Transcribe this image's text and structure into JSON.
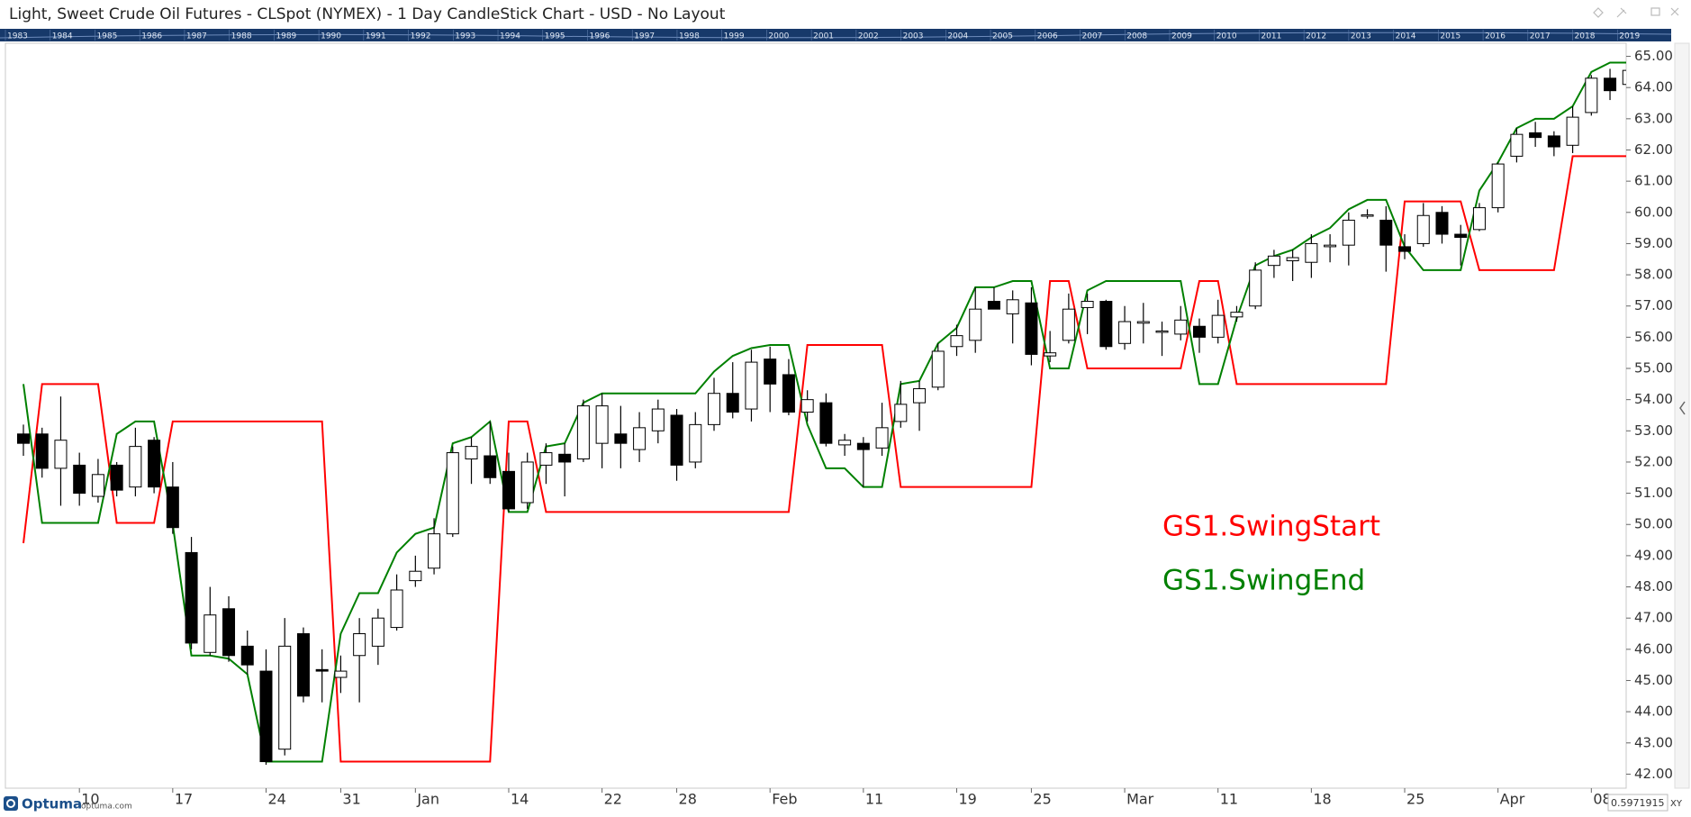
{
  "chart_data": {
    "type": "candlestick",
    "title": "Light, Sweet Crude Oil Futures - CLSpot (NYMEX) - 1 Day CandleStick Chart - USD - No Layout",
    "categories": [
      null,
      null,
      null,
      "10",
      null,
      null,
      null,
      null,
      "17",
      null,
      null,
      null,
      null,
      "24",
      null,
      null,
      null,
      "31",
      null,
      null,
      null,
      "Jan",
      null,
      null,
      null,
      null,
      "14",
      null,
      null,
      null,
      null,
      "22",
      null,
      null,
      null,
      "28",
      null,
      null,
      null,
      null,
      "Feb",
      null,
      null,
      null,
      null,
      "11",
      null,
      null,
      null,
      null,
      "19",
      null,
      null,
      null,
      "25",
      null,
      null,
      null,
      null,
      "Mar",
      null,
      null,
      null,
      null,
      "11",
      null,
      null,
      null,
      null,
      "18",
      null,
      null,
      null,
      null,
      "25",
      null,
      null,
      null,
      null,
      "Apr",
      null,
      null,
      null,
      null,
      "08",
      null,
      null
    ],
    "open": [
      52.9,
      52.9,
      51.8,
      51.9,
      50.9,
      51.9,
      51.2,
      52.7,
      51.2,
      49.1,
      45.9,
      47.3,
      46.1,
      45.3,
      42.8,
      46.5,
      45.35,
      45.1,
      45.8,
      46.1,
      46.7,
      48.2,
      48.6,
      49.7,
      52.1,
      52.2,
      51.7,
      50.7,
      51.9,
      52.25,
      52.1,
      52.6,
      52.9,
      52.4,
      53.0,
      53.5,
      52.0,
      53.2,
      54.2,
      53.7,
      55.3,
      54.8,
      53.6,
      53.9,
      52.55,
      52.6,
      52.45,
      53.3,
      53.9,
      54.4,
      55.7,
      55.9,
      57.15,
      56.75,
      57.1,
      55.4,
      55.9,
      56.95,
      57.15,
      55.8,
      56.45,
      56.2,
      56.1,
      56.35,
      56.0,
      56.65,
      57.0,
      58.3,
      58.45,
      58.4,
      58.9,
      58.95,
      59.88,
      59.75,
      58.9,
      59.0,
      60.0,
      59.3,
      59.45,
      60.15,
      61.8,
      62.55,
      62.45,
      62.15,
      63.2,
      64.3,
      64.1
    ],
    "high": [
      53.2,
      53.1,
      54.1,
      52.3,
      52.1,
      52.0,
      53.1,
      52.8,
      52.0,
      49.6,
      48.0,
      47.7,
      46.6,
      46.0,
      47.0,
      46.7,
      46.0,
      45.8,
      47.0,
      47.3,
      48.4,
      49.0,
      50.2,
      52.5,
      52.8,
      53.3,
      52.3,
      52.3,
      52.6,
      52.6,
      54.0,
      54.2,
      53.8,
      53.6,
      54.0,
      53.7,
      53.6,
      54.7,
      55.2,
      55.6,
      55.7,
      55.3,
      54.3,
      54.2,
      52.9,
      52.8,
      53.9,
      54.6,
      54.6,
      55.8,
      56.4,
      57.6,
      57.6,
      57.5,
      57.6,
      56.2,
      57.4,
      57.4,
      57.2,
      57.0,
      57.1,
      56.5,
      57.0,
      56.6,
      57.2,
      57.0,
      58.4,
      58.8,
      58.8,
      59.3,
      59.3,
      60.0,
      60.1,
      60.2,
      59.3,
      60.3,
      60.2,
      59.6,
      60.3,
      61.6,
      62.7,
      62.9,
      62.6,
      63.4,
      64.4,
      64.6,
      64.8
    ],
    "low": [
      52.2,
      51.5,
      50.6,
      50.6,
      50.7,
      50.9,
      50.9,
      51.0,
      49.7,
      46.0,
      45.8,
      45.6,
      45.2,
      42.3,
      42.6,
      44.3,
      44.3,
      44.6,
      44.3,
      45.5,
      46.6,
      48.0,
      48.4,
      49.6,
      51.3,
      51.3,
      50.4,
      50.5,
      51.3,
      50.9,
      52.0,
      51.8,
      51.8,
      52.0,
      52.6,
      51.4,
      51.8,
      53.0,
      53.4,
      53.3,
      53.6,
      53.5,
      53.3,
      52.5,
      52.2,
      51.2,
      52.2,
      53.1,
      53.0,
      54.3,
      55.4,
      55.5,
      56.9,
      55.8,
      55.1,
      55.2,
      55.8,
      56.1,
      55.6,
      55.6,
      55.8,
      55.4,
      55.9,
      55.5,
      55.8,
      56.5,
      56.9,
      57.9,
      57.8,
      57.9,
      58.4,
      58.3,
      59.8,
      58.1,
      58.5,
      58.9,
      59.0,
      58.3,
      59.4,
      60.0,
      61.6,
      62.1,
      61.8,
      61.9,
      63.1,
      63.6,
      64.0
    ],
    "close": [
      52.6,
      51.8,
      52.7,
      51.0,
      51.6,
      51.1,
      52.5,
      51.2,
      49.9,
      46.2,
      47.1,
      45.8,
      45.5,
      42.4,
      46.1,
      44.5,
      45.3,
      45.3,
      46.5,
      47.0,
      47.9,
      48.5,
      49.7,
      52.3,
      52.5,
      51.5,
      50.5,
      52.0,
      52.3,
      52.0,
      53.8,
      53.8,
      52.6,
      53.1,
      53.7,
      51.9,
      53.2,
      54.2,
      53.6,
      55.2,
      54.5,
      53.6,
      54.0,
      52.6,
      52.7,
      52.4,
      53.1,
      53.85,
      54.35,
      55.55,
      56.05,
      56.9,
      56.9,
      57.2,
      55.45,
      55.5,
      56.9,
      57.15,
      55.7,
      56.5,
      56.5,
      56.2,
      56.55,
      56.0,
      56.7,
      56.8,
      58.15,
      58.6,
      58.55,
      59.0,
      58.95,
      59.75,
      59.92,
      58.95,
      58.75,
      59.9,
      59.3,
      59.2,
      60.15,
      61.55,
      62.5,
      62.4,
      62.1,
      63.05,
      64.3,
      63.9,
      64.55
    ],
    "up_color": "#ffffff",
    "down_color": "#000000",
    "series": [
      {
        "name": "GS1.SwingStart",
        "color": "#ff0000",
        "values": [
          49.4,
          54.5,
          54.5,
          54.5,
          54.5,
          50.05,
          50.05,
          50.05,
          53.3,
          53.3,
          53.3,
          53.3,
          53.3,
          53.3,
          53.3,
          53.3,
          53.3,
          42.4,
          42.4,
          42.4,
          42.4,
          42.4,
          42.4,
          42.4,
          42.4,
          42.4,
          53.3,
          53.3,
          50.4,
          50.4,
          50.4,
          50.4,
          50.4,
          50.4,
          50.4,
          50.4,
          50.4,
          50.4,
          50.4,
          50.4,
          50.4,
          50.4,
          55.75,
          55.75,
          55.75,
          55.75,
          55.75,
          51.2,
          51.2,
          51.2,
          51.2,
          51.2,
          51.2,
          51.2,
          51.2,
          57.8,
          57.8,
          55.0,
          55.0,
          55.0,
          55.0,
          55.0,
          55.0,
          57.8,
          57.8,
          54.5,
          54.5,
          54.5,
          54.5,
          54.5,
          54.5,
          54.5,
          54.5,
          54.5,
          60.35,
          60.35,
          60.35,
          60.35,
          58.15,
          58.15,
          58.15,
          58.15,
          58.15,
          61.8,
          61.8,
          61.8,
          61.8
        ]
      },
      {
        "name": "GS1.SwingEnd",
        "color": "#008000",
        "values": [
          54.5,
          50.05,
          50.05,
          50.05,
          50.05,
          52.9,
          53.3,
          53.3,
          50.0,
          45.8,
          45.8,
          45.7,
          45.2,
          42.4,
          42.4,
          42.4,
          42.4,
          46.5,
          47.8,
          47.8,
          49.1,
          49.7,
          49.9,
          52.6,
          52.8,
          53.3,
          50.4,
          50.4,
          52.5,
          52.6,
          53.9,
          54.2,
          54.2,
          54.2,
          54.2,
          54.2,
          54.2,
          54.9,
          55.4,
          55.65,
          55.75,
          55.75,
          53.2,
          51.8,
          51.8,
          51.2,
          51.2,
          54.5,
          54.6,
          55.8,
          56.3,
          57.6,
          57.6,
          57.8,
          57.8,
          55.0,
          55.0,
          57.5,
          57.8,
          57.8,
          57.8,
          57.8,
          57.8,
          54.5,
          54.5,
          56.6,
          58.3,
          58.6,
          58.8,
          59.2,
          59.5,
          60.1,
          60.4,
          60.4,
          58.9,
          58.15,
          58.15,
          58.15,
          60.7,
          61.6,
          62.7,
          63.0,
          63.0,
          63.4,
          64.5,
          64.8,
          64.8
        ]
      }
    ],
    "ylim": [
      41.55,
      65.42
    ],
    "yticks": [
      {
        "value": 42,
        "label": "42.00"
      },
      {
        "value": 43,
        "label": "43.00"
      },
      {
        "value": 44,
        "label": "44.00"
      },
      {
        "value": 45,
        "label": "45.00"
      },
      {
        "value": 46,
        "label": "46.00"
      },
      {
        "value": 47,
        "label": "47.00"
      },
      {
        "value": 48,
        "label": "48.00"
      },
      {
        "value": 49,
        "label": "49.00"
      },
      {
        "value": 50,
        "label": "50.00"
      },
      {
        "value": 51,
        "label": "51.00"
      },
      {
        "value": 52,
        "label": "52.00"
      },
      {
        "value": 53,
        "label": "53.00"
      },
      {
        "value": 54,
        "label": "54.00"
      },
      {
        "value": 55,
        "label": "55.00"
      },
      {
        "value": 56,
        "label": "56.00"
      },
      {
        "value": 57,
        "label": "57.00"
      },
      {
        "value": 58,
        "label": "58.00"
      },
      {
        "value": 59,
        "label": "59.00"
      },
      {
        "value": 60,
        "label": "60.00"
      },
      {
        "value": 61,
        "label": "61.00"
      },
      {
        "value": 62,
        "label": "62.00"
      },
      {
        "value": 63,
        "label": "63.00"
      },
      {
        "value": 64,
        "label": "64.00"
      },
      {
        "value": 65,
        "label": "65.00"
      }
    ],
    "grid": false
  },
  "overview": {
    "years": [
      "1983",
      "1984",
      "1985",
      "1986",
      "1987",
      "1988",
      "1989",
      "1990",
      "1991",
      "1992",
      "1993",
      "1994",
      "1995",
      "1996",
      "1997",
      "1998",
      "1999",
      "2000",
      "2001",
      "2002",
      "2003",
      "2004",
      "2005",
      "2006",
      "2007",
      "2008",
      "2009",
      "2010",
      "2011",
      "2012",
      "2013",
      "2014",
      "2015",
      "2016",
      "2017",
      "2018",
      "2019"
    ]
  },
  "footer": {
    "brand": "Optuma",
    "site": "optuma.com",
    "cursor_value": "0.5971915",
    "mode": "XY"
  }
}
